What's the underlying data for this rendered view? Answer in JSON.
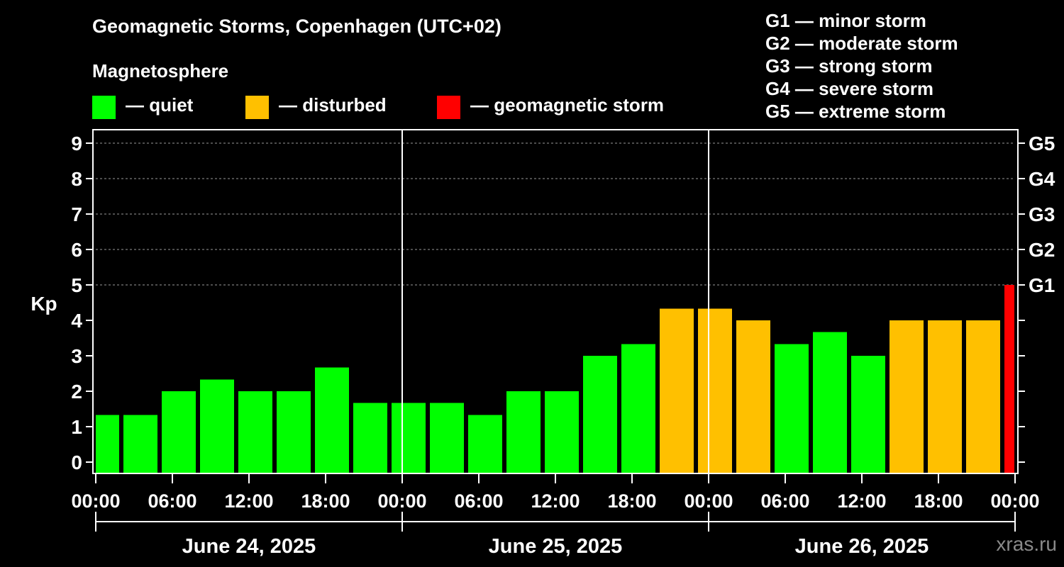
{
  "header": {
    "title": "Geomagnetic Storms, Copenhagen (UTC+02)",
    "subtitle": "Magnetosphere"
  },
  "legend": [
    {
      "label": "— quiet",
      "color": "#00ff00"
    },
    {
      "label": "— disturbed",
      "color": "#ffc000"
    },
    {
      "label": "— geomagnetic storm",
      "color": "#ff0000"
    }
  ],
  "storm_scale": [
    "G1 — minor storm",
    "G2 — moderate storm",
    "G3 — strong storm",
    "G4 — severe storm",
    "G5 — extreme storm"
  ],
  "watermark": "xras.ru",
  "chart_data": {
    "type": "bar",
    "title": "Geomagnetic Storms, Copenhagen (UTC+02)",
    "ylabel": "Kp",
    "ylim": [
      0,
      9
    ],
    "y_ticks": [
      "0",
      "1",
      "2",
      "3",
      "4",
      "5",
      "6",
      "7",
      "8",
      "9"
    ],
    "g_ticks": [
      {
        "kp": 5,
        "label": "G1"
      },
      {
        "kp": 6,
        "label": "G2"
      },
      {
        "kp": 7,
        "label": "G3"
      },
      {
        "kp": 8,
        "label": "G4"
      },
      {
        "kp": 9,
        "label": "G5"
      }
    ],
    "x_tick_labels": [
      "00:00",
      "06:00",
      "12:00",
      "18:00",
      "00:00",
      "06:00",
      "12:00",
      "18:00",
      "00:00",
      "06:00",
      "12:00",
      "18:00",
      "00:00"
    ],
    "days": [
      "June 24, 2025",
      "June 25, 2025",
      "June 26, 2025"
    ],
    "time_range_hours": [
      0,
      72
    ],
    "bars": [
      {
        "start_h": 0,
        "end_h": 2,
        "kp": 1.33,
        "status": "quiet"
      },
      {
        "start_h": 2,
        "end_h": 5,
        "kp": 1.33,
        "status": "quiet"
      },
      {
        "start_h": 5,
        "end_h": 8,
        "kp": 2.0,
        "status": "quiet"
      },
      {
        "start_h": 8,
        "end_h": 11,
        "kp": 2.33,
        "status": "quiet"
      },
      {
        "start_h": 11,
        "end_h": 14,
        "kp": 2.0,
        "status": "quiet"
      },
      {
        "start_h": 14,
        "end_h": 17,
        "kp": 2.0,
        "status": "quiet"
      },
      {
        "start_h": 17,
        "end_h": 20,
        "kp": 2.67,
        "status": "quiet"
      },
      {
        "start_h": 20,
        "end_h": 23,
        "kp": 1.67,
        "status": "quiet"
      },
      {
        "start_h": 23,
        "end_h": 26,
        "kp": 1.67,
        "status": "quiet"
      },
      {
        "start_h": 26,
        "end_h": 29,
        "kp": 1.67,
        "status": "quiet"
      },
      {
        "start_h": 29,
        "end_h": 32,
        "kp": 1.33,
        "status": "quiet"
      },
      {
        "start_h": 32,
        "end_h": 35,
        "kp": 2.0,
        "status": "quiet"
      },
      {
        "start_h": 35,
        "end_h": 38,
        "kp": 2.0,
        "status": "quiet"
      },
      {
        "start_h": 38,
        "end_h": 41,
        "kp": 3.0,
        "status": "quiet"
      },
      {
        "start_h": 41,
        "end_h": 44,
        "kp": 3.33,
        "status": "quiet"
      },
      {
        "start_h": 44,
        "end_h": 47,
        "kp": 4.33,
        "status": "disturbed"
      },
      {
        "start_h": 47,
        "end_h": 50,
        "kp": 4.33,
        "status": "disturbed"
      },
      {
        "start_h": 50,
        "end_h": 53,
        "kp": 4.0,
        "status": "disturbed"
      },
      {
        "start_h": 53,
        "end_h": 56,
        "kp": 3.33,
        "status": "quiet"
      },
      {
        "start_h": 56,
        "end_h": 59,
        "kp": 3.67,
        "status": "quiet"
      },
      {
        "start_h": 59,
        "end_h": 62,
        "kp": 3.0,
        "status": "quiet"
      },
      {
        "start_h": 62,
        "end_h": 65,
        "kp": 4.0,
        "status": "disturbed"
      },
      {
        "start_h": 65,
        "end_h": 68,
        "kp": 4.0,
        "status": "disturbed"
      },
      {
        "start_h": 68,
        "end_h": 71,
        "kp": 4.0,
        "status": "disturbed"
      },
      {
        "start_h": 71,
        "end_h": 72,
        "kp": 5.0,
        "status": "storm"
      }
    ]
  }
}
